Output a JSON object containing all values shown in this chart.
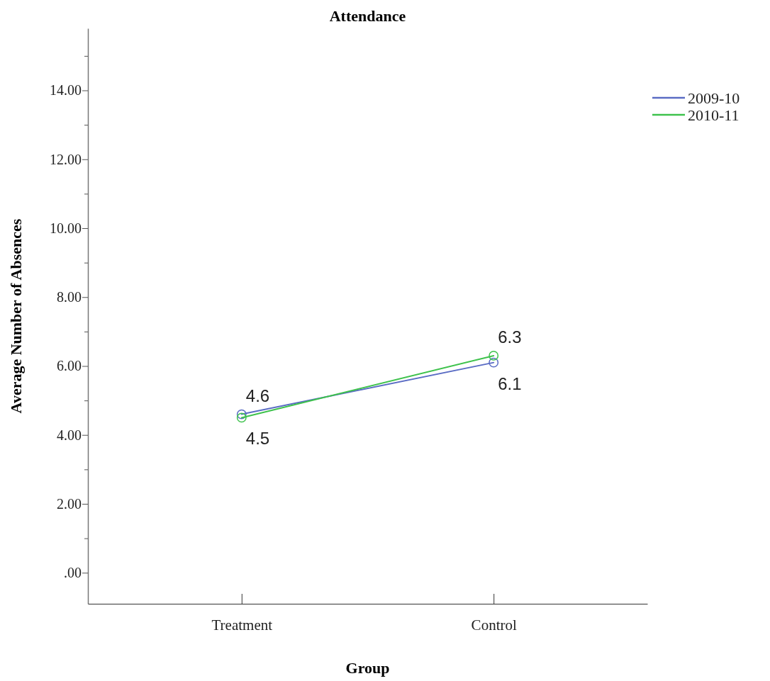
{
  "chart_data": {
    "type": "line",
    "title": "Attendance",
    "xlabel": "Group",
    "ylabel": "Average Number of Absences",
    "categories": [
      "Treatment",
      "Control"
    ],
    "series": [
      {
        "name": "2009-10",
        "color": "#5a6cc4",
        "values": [
          4.6,
          6.1
        ]
      },
      {
        "name": "2010-11",
        "color": "#3ec24c",
        "values": [
          4.5,
          6.3
        ]
      }
    ],
    "ylim": [
      -0.9,
      15.8
    ],
    "yticks": [
      {
        "value": 0,
        "label": ".00"
      },
      {
        "value": 1,
        "label": null
      },
      {
        "value": 2,
        "label": "2.00"
      },
      {
        "value": 3,
        "label": null
      },
      {
        "value": 4,
        "label": "4.00"
      },
      {
        "value": 5,
        "label": null
      },
      {
        "value": 6,
        "label": "6.00"
      },
      {
        "value": 7,
        "label": null
      },
      {
        "value": 8,
        "label": "8.00"
      },
      {
        "value": 9,
        "label": null
      },
      {
        "value": 10,
        "label": "10.00"
      },
      {
        "value": 11,
        "label": null
      },
      {
        "value": 12,
        "label": "12.00"
      },
      {
        "value": 13,
        "label": null
      },
      {
        "value": 14,
        "label": "14.00"
      },
      {
        "value": 15,
        "label": null
      }
    ],
    "data_labels": true,
    "marker": "circle",
    "line_style": "solid",
    "legend": "top right",
    "grid": false
  }
}
